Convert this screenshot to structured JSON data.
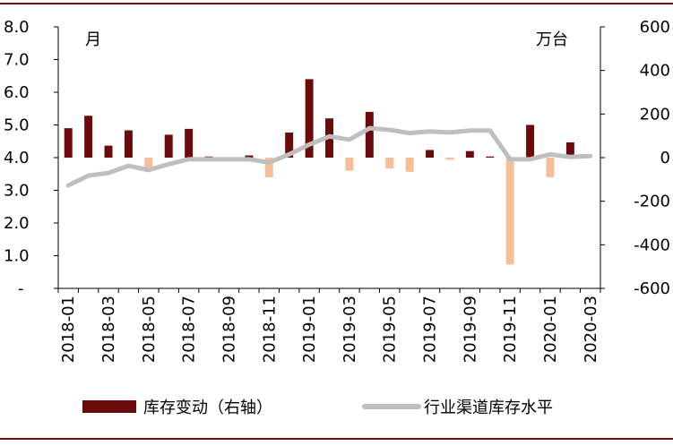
{
  "chart_data": {
    "type": "bar+line",
    "title": "",
    "categories": [
      "2018-01",
      "2018-02",
      "2018-03",
      "2018-04",
      "2018-05",
      "2018-06",
      "2018-07",
      "2018-08",
      "2018-09",
      "2018-10",
      "2018-11",
      "2018-12",
      "2019-01",
      "2019-02",
      "2019-03",
      "2019-04",
      "2019-05",
      "2019-06",
      "2019-07",
      "2019-08",
      "2019-09",
      "2019-10",
      "2019-11",
      "2019-12",
      "2020-01",
      "2020-02",
      "2020-03"
    ],
    "x_tick_labels": [
      "2018-01",
      "2018-03",
      "2018-05",
      "2018-07",
      "2018-09",
      "2018-11",
      "2019-01",
      "2019-03",
      "2019-05",
      "2019-07",
      "2019-09",
      "2019-11",
      "2020-01",
      "2020-03"
    ],
    "left_axis": {
      "label": "月",
      "ylim": [
        0,
        8
      ],
      "tick_labels": [
        "-",
        "1.0",
        "2.0",
        "3.0",
        "4.0",
        "5.0",
        "6.0",
        "7.0",
        "8.0"
      ]
    },
    "right_axis": {
      "label": "万台",
      "ylim": [
        -600,
        600
      ],
      "tick_labels": [
        "-600",
        "-400",
        "-200",
        "0",
        "200",
        "400",
        "600"
      ],
      "negative_tick_color": "#e8001c"
    },
    "series": [
      {
        "name": "库存变动（右轴）",
        "type": "bar",
        "axis": "right",
        "positive_color": "#6b0a0a",
        "negative_color": "#f7bf96",
        "values": [
          135,
          192,
          55,
          125,
          -45,
          105,
          132,
          5,
          -10,
          10,
          -90,
          115,
          360,
          180,
          -60,
          210,
          -50,
          -65,
          35,
          -10,
          30,
          5,
          -490,
          150,
          -90,
          70,
          0
        ]
      },
      {
        "name": "行业渠道库存水平",
        "type": "line",
        "axis": "left",
        "color": "#bfbfbf",
        "values": [
          3.15,
          3.45,
          3.53,
          3.75,
          3.62,
          3.8,
          3.95,
          3.95,
          3.95,
          3.95,
          3.85,
          4.1,
          4.4,
          4.65,
          4.55,
          4.9,
          4.85,
          4.75,
          4.8,
          4.77,
          4.83,
          4.83,
          3.95,
          3.95,
          4.1,
          4.02,
          4.05
        ]
      }
    ],
    "grid": false,
    "legend_position": "bottom"
  },
  "legend": {
    "bar_label": "库存变动（右轴）",
    "line_label": "行业渠道库存水平"
  }
}
